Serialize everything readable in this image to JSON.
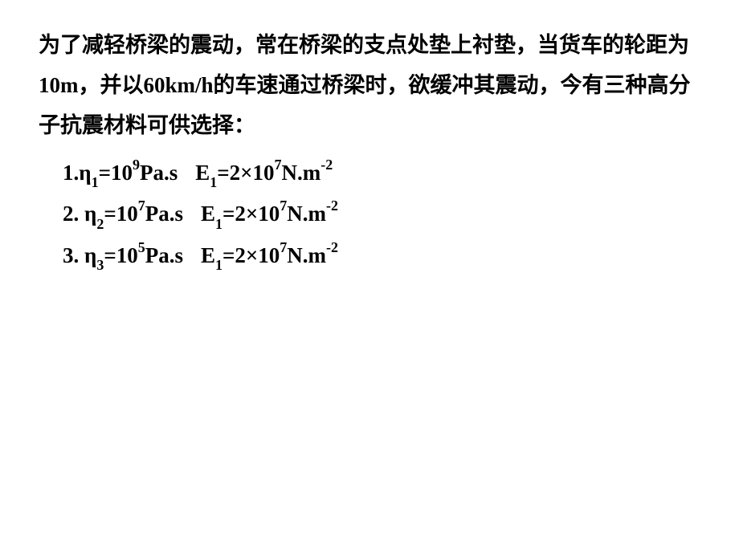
{
  "paragraph": {
    "text": "为了减轻桥梁的震动，常在桥梁的支点处垫上衬垫，当货车的轮距为10m，并以60km/h的车速通过桥梁时，欲缓冲其震动，今有三种高分子抗震材料可供选择："
  },
  "items": [
    {
      "prefix": "1.",
      "eta_label": "η",
      "eta_sub": "1",
      "eta_val": "=10",
      "eta_sup": "9",
      "eta_unit": "Pa.s",
      "e_label": "E",
      "e_sub": "1",
      "e_val": "=2×10",
      "e_sup": "7",
      "e_unit": "N.m",
      "e_unit_sup": "-2"
    },
    {
      "prefix": "2. ",
      "eta_label": "η",
      "eta_sub": "2",
      "eta_val": "=10",
      "eta_sup": "7",
      "eta_unit": "Pa.s",
      "e_label": "E",
      "e_sub": "1",
      "e_val": "=2×10",
      "e_sup": "7",
      "e_unit": "N.m",
      "e_unit_sup": "-2"
    },
    {
      "prefix": "3. ",
      "eta_label": "η",
      "eta_sub": "3",
      "eta_val": "=10",
      "eta_sup": "5",
      "eta_unit": "Pa.s",
      "e_label": "E",
      "e_sub": "1",
      "e_val": "=2×10",
      "e_sup": "7",
      "e_unit": "N.m",
      "e_unit_sup": "-2"
    }
  ],
  "style": {
    "font_size_main": 27,
    "font_size_subsup": 18,
    "line_height": 1.85,
    "color": "#000000",
    "background": "#ffffff",
    "font_weight": "bold"
  }
}
